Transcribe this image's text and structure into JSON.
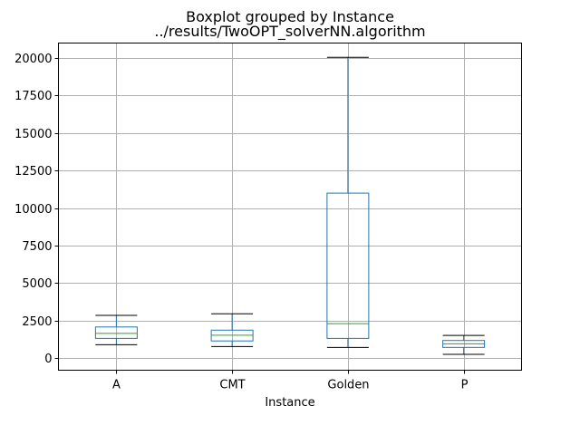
{
  "chart_data": {
    "type": "box",
    "title": "Boxplot grouped by Instance",
    "subtitle": "../results/TwoOPT_solverNN.algorithm",
    "xlabel": "Instance",
    "ylabel": "",
    "categories": [
      "A",
      "CMT",
      "Golden",
      "P"
    ],
    "boxes": [
      {
        "category": "A",
        "whisker_low": 900,
        "q1": 1320,
        "median": 1650,
        "q3": 2080,
        "whisker_high": 2850
      },
      {
        "category": "CMT",
        "whisker_low": 780,
        "q1": 1150,
        "median": 1530,
        "q3": 1870,
        "whisker_high": 2960
      },
      {
        "category": "Golden",
        "whisker_low": 720,
        "q1": 1320,
        "median": 2300,
        "q3": 11000,
        "whisker_high": 20050
      },
      {
        "category": "P",
        "whisker_low": 260,
        "q1": 720,
        "median": 960,
        "q3": 1180,
        "whisker_high": 1520
      }
    ],
    "ylim": [
      -800,
      21000
    ],
    "yticks": [
      0,
      2500,
      5000,
      7500,
      10000,
      12500,
      15000,
      17500,
      20000
    ],
    "grid": true,
    "colors": {
      "box": "#1f77b4",
      "median": "#2ca02c",
      "whisker_cap": "#000000",
      "grid": "#b0b0b0"
    }
  }
}
